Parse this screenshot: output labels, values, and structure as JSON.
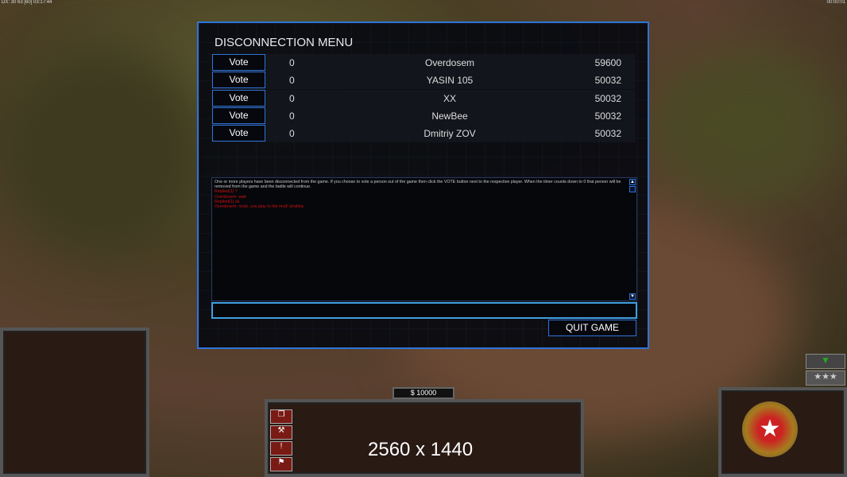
{
  "hud": {
    "top_left": "DX: 30 63 [60] 03:17:44",
    "top_right": "00:00:01"
  },
  "dialog": {
    "title": "DISCONNECTION MENU",
    "players": [
      {
        "vote": "Vote",
        "count": "0",
        "name": "Overdosem",
        "ping": "59600"
      },
      {
        "vote": "Vote",
        "count": "0",
        "name": "YASIN 105",
        "ping": "50032"
      },
      {
        "vote": "Vote",
        "count": "0",
        "name": "XX",
        "ping": "50032"
      },
      {
        "vote": "Vote",
        "count": "0",
        "name": "NewBee",
        "ping": "50032"
      },
      {
        "vote": "Vote",
        "count": "0",
        "name": "Dmitriy ZOV",
        "ping": "50032"
      }
    ],
    "message": "One or more players have been disconnected from the game. If you choose to vote a person out of the game then click the VOTE button next to the respective player. When the timer counts down to 0 that person will be removed from the game and the battle will continue.",
    "chat": [
      "Replied(1) ?",
      "Overdosem: wait",
      "Replied(1) ok",
      "Overdosem: noob, you play to the mod! ahahha"
    ],
    "chat_input": "",
    "quit": "QUIT GAME"
  },
  "money": "$ 10000",
  "resolution": "2560 x 1440",
  "colors": {
    "accent": "#2f73d8",
    "chat_red": "#d01010"
  }
}
